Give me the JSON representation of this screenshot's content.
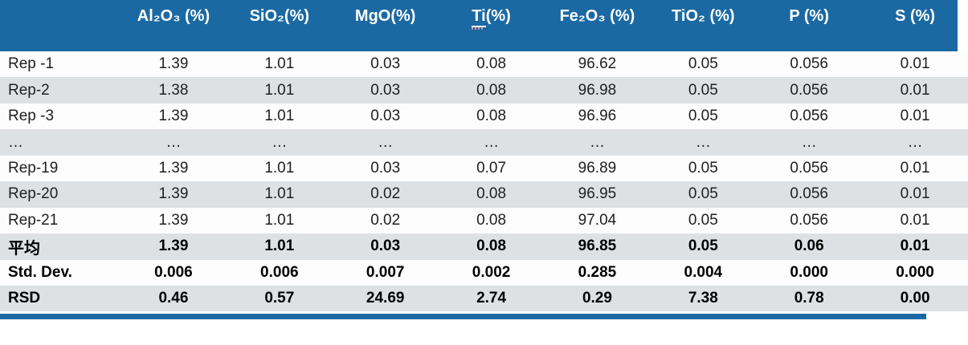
{
  "style": {
    "header_bg": "#1b69a3",
    "band_bg": "#dee1e4",
    "accent_bar": "#1b69a3",
    "header_text": "#ffffff",
    "body_text": "#202020"
  },
  "chart_data": {
    "type": "table",
    "title": "",
    "columns": [
      {
        "label": ""
      },
      {
        "label": "Al₂O₃ (%)"
      },
      {
        "label": "SiO₂(%)"
      },
      {
        "label": "MgO(%)"
      },
      {
        "label": "Ti(%)",
        "underlined_part": "Ti",
        "rest": "(%)"
      },
      {
        "label": "Fe₂O₃ (%)"
      },
      {
        "label": "TiO₂ (%)"
      },
      {
        "label": "P (%)"
      },
      {
        "label": "S (%)"
      }
    ],
    "rows": [
      {
        "label": "Rep -1",
        "bold": false,
        "values": [
          "1.39",
          "1.01",
          "0.03",
          "0.08",
          "96.62",
          "0.05",
          "0.056",
          "0.01"
        ]
      },
      {
        "label": "Rep-2",
        "bold": false,
        "values": [
          "1.38",
          "1.01",
          "0.03",
          "0.08",
          "96.98",
          "0.05",
          "0.056",
          "0.01"
        ]
      },
      {
        "label": "Rep -3",
        "bold": false,
        "values": [
          "1.39",
          "1.01",
          "0.03",
          "0.08",
          "96.96",
          "0.05",
          "0.056",
          "0.01"
        ]
      },
      {
        "label": "…",
        "bold": false,
        "values": [
          "…",
          "…",
          "…",
          "…",
          "…",
          "…",
          "…",
          "…"
        ]
      },
      {
        "label": "Rep-19",
        "bold": false,
        "values": [
          "1.39",
          "1.01",
          "0.03",
          "0.07",
          "96.89",
          "0.05",
          "0.056",
          "0.01"
        ]
      },
      {
        "label": "Rep-20",
        "bold": false,
        "values": [
          "1.39",
          "1.01",
          "0.02",
          "0.08",
          "96.95",
          "0.05",
          "0.056",
          "0.01"
        ]
      },
      {
        "label": "Rep-21",
        "bold": false,
        "values": [
          "1.39",
          "1.01",
          "0.02",
          "0.08",
          "97.04",
          "0.05",
          "0.056",
          "0.01"
        ]
      },
      {
        "label": "平均",
        "bold": true,
        "values": [
          "1.39",
          "1.01",
          "0.03",
          "0.08",
          "96.85",
          "0.05",
          "0.06",
          "0.01"
        ]
      },
      {
        "label": "Std. Dev.",
        "bold": true,
        "values": [
          "0.006",
          "0.006",
          "0.007",
          "0.002",
          "0.285",
          "0.004",
          "0.000",
          "0.000"
        ]
      },
      {
        "label": "RSD",
        "bold": true,
        "values": [
          "0.46",
          "0.57",
          "24.69",
          "2.74",
          "0.29",
          "7.38",
          "0.78",
          "0.00"
        ]
      }
    ]
  }
}
